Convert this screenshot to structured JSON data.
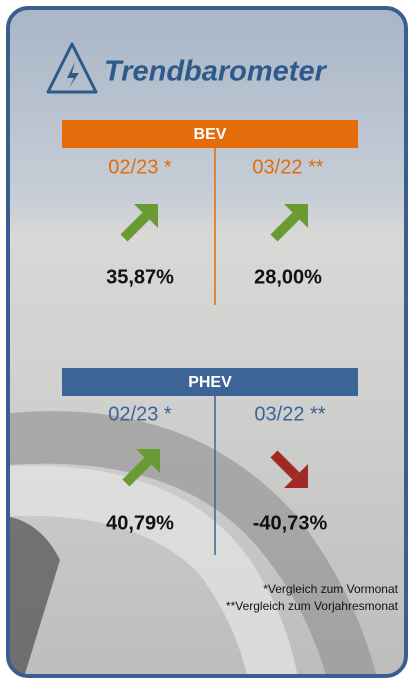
{
  "header": {
    "title": "Trendbarometer"
  },
  "sections": [
    {
      "label": "BEV",
      "columns": [
        {
          "period": "02/23 *",
          "value": "35,87%"
        },
        {
          "period": "03/22 **",
          "value": "28,00%"
        }
      ]
    },
    {
      "label": "PHEV",
      "columns": [
        {
          "period": "02/23 *",
          "value": "40,79%"
        },
        {
          "period": "03/22 **",
          "value": "-40,73%"
        }
      ]
    }
  ],
  "footnotes": [
    "*Vergleich zum Vormonat",
    "**Vergleich zum Vorjahresmonat"
  ]
}
